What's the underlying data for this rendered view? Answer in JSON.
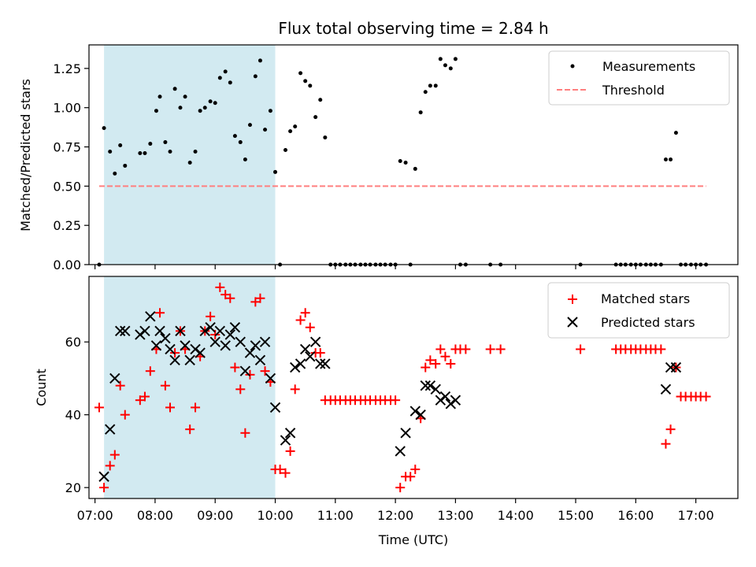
{
  "chart_data": [
    {
      "type": "scatter",
      "title": "Flux total observing time = 2.84 h",
      "xlabel": "",
      "ylabel": "Matched/Predicted stars",
      "xlim": [
        6.9,
        17.7
      ],
      "ylim": [
        0.0,
        1.4
      ],
      "yticks": [
        0.0,
        0.25,
        0.5,
        0.75,
        1.0,
        1.25
      ],
      "ytick_labels": [
        "0.00",
        "0.25",
        "0.50",
        "0.75",
        "1.00",
        "1.25"
      ],
      "grid": false,
      "legend_position": "top-right",
      "shaded_region": {
        "x_start": 7.15,
        "x_end": 10.0,
        "color": "#add8e6"
      },
      "series": [
        {
          "name": "Measurements",
          "marker": "dot",
          "color": "#000000",
          "points": [
            [
              7.07,
              0.0
            ],
            [
              7.15,
              0.87
            ],
            [
              7.25,
              0.72
            ],
            [
              7.33,
              0.58
            ],
            [
              7.42,
              0.76
            ],
            [
              7.5,
              0.63
            ],
            [
              7.75,
              0.71
            ],
            [
              7.83,
              0.71
            ],
            [
              7.92,
              0.77
            ],
            [
              8.02,
              0.98
            ],
            [
              8.08,
              1.07
            ],
            [
              8.17,
              0.78
            ],
            [
              8.25,
              0.72
            ],
            [
              8.33,
              1.12
            ],
            [
              8.42,
              1.0
            ],
            [
              8.5,
              1.07
            ],
            [
              8.58,
              0.65
            ],
            [
              8.67,
              0.72
            ],
            [
              8.75,
              0.98
            ],
            [
              8.83,
              1.0
            ],
            [
              8.92,
              1.04
            ],
            [
              9.0,
              1.03
            ],
            [
              9.08,
              1.19
            ],
            [
              9.17,
              1.23
            ],
            [
              9.25,
              1.16
            ],
            [
              9.33,
              0.82
            ],
            [
              9.42,
              0.78
            ],
            [
              9.5,
              0.67
            ],
            [
              9.58,
              0.89
            ],
            [
              9.67,
              1.2
            ],
            [
              9.75,
              1.3
            ],
            [
              9.83,
              0.86
            ],
            [
              9.92,
              0.98
            ],
            [
              10.0,
              0.59
            ],
            [
              10.08,
              0.0
            ],
            [
              10.17,
              0.73
            ],
            [
              10.25,
              0.85
            ],
            [
              10.33,
              0.88
            ],
            [
              10.42,
              1.22
            ],
            [
              10.5,
              1.17
            ],
            [
              10.58,
              1.14
            ],
            [
              10.67,
              0.94
            ],
            [
              10.75,
              1.05
            ],
            [
              10.83,
              0.81
            ],
            [
              10.92,
              0.0
            ],
            [
              11.0,
              0.0
            ],
            [
              11.08,
              0.0
            ],
            [
              11.17,
              0.0
            ],
            [
              11.25,
              0.0
            ],
            [
              11.33,
              0.0
            ],
            [
              11.42,
              0.0
            ],
            [
              11.5,
              0.0
            ],
            [
              11.58,
              0.0
            ],
            [
              11.67,
              0.0
            ],
            [
              11.75,
              0.0
            ],
            [
              11.83,
              0.0
            ],
            [
              11.92,
              0.0
            ],
            [
              12.0,
              0.0
            ],
            [
              12.08,
              0.66
            ],
            [
              12.17,
              0.65
            ],
            [
              12.25,
              0.0
            ],
            [
              12.33,
              0.61
            ],
            [
              12.42,
              0.97
            ],
            [
              12.5,
              1.1
            ],
            [
              12.58,
              1.14
            ],
            [
              12.67,
              1.14
            ],
            [
              12.75,
              1.31
            ],
            [
              12.83,
              1.27
            ],
            [
              12.92,
              1.25
            ],
            [
              13.0,
              1.31
            ],
            [
              13.08,
              0.0
            ],
            [
              13.17,
              0.0
            ],
            [
              13.58,
              0.0
            ],
            [
              13.75,
              0.0
            ],
            [
              15.08,
              0.0
            ],
            [
              15.67,
              0.0
            ],
            [
              15.75,
              0.0
            ],
            [
              15.83,
              0.0
            ],
            [
              15.92,
              0.0
            ],
            [
              16.0,
              0.0
            ],
            [
              16.08,
              0.0
            ],
            [
              16.17,
              0.0
            ],
            [
              16.25,
              0.0
            ],
            [
              16.33,
              0.0
            ],
            [
              16.42,
              0.0
            ],
            [
              16.5,
              0.67
            ],
            [
              16.58,
              0.67
            ],
            [
              16.67,
              0.84
            ],
            [
              16.75,
              0.0
            ],
            [
              16.83,
              0.0
            ],
            [
              16.92,
              0.0
            ],
            [
              17.0,
              0.0
            ],
            [
              17.08,
              0.0
            ],
            [
              17.17,
              0.0
            ]
          ]
        },
        {
          "name": "Threshold",
          "marker": "dashed-line",
          "color": "#ff7f7f",
          "points": [
            [
              7.07,
              0.5
            ],
            [
              17.17,
              0.5
            ]
          ]
        }
      ]
    },
    {
      "type": "scatter",
      "title": "",
      "xlabel": "Time (UTC)",
      "ylabel": "Count",
      "xlim": [
        6.9,
        17.7
      ],
      "ylim": [
        17,
        78
      ],
      "yticks": [
        20,
        40,
        60
      ],
      "ytick_labels": [
        "20",
        "40",
        "60"
      ],
      "xticks": [
        7,
        8,
        9,
        10,
        11,
        12,
        13,
        14,
        15,
        16,
        17
      ],
      "xtick_labels": [
        "07:00",
        "08:00",
        "09:00",
        "10:00",
        "11:00",
        "12:00",
        "13:00",
        "14:00",
        "15:00",
        "16:00",
        "17:00"
      ],
      "grid": false,
      "legend_position": "top-right",
      "shaded_region": {
        "x_start": 7.15,
        "x_end": 10.0,
        "color": "#add8e6"
      },
      "series": [
        {
          "name": "Matched stars",
          "marker": "plus",
          "color": "#ff0000",
          "points": [
            [
              7.07,
              42
            ],
            [
              7.15,
              20
            ],
            [
              7.25,
              26
            ],
            [
              7.33,
              29
            ],
            [
              7.42,
              48
            ],
            [
              7.5,
              40
            ],
            [
              7.75,
              44
            ],
            [
              7.83,
              45
            ],
            [
              7.92,
              52
            ],
            [
              8.02,
              58
            ],
            [
              8.08,
              68
            ],
            [
              8.17,
              48
            ],
            [
              8.25,
              42
            ],
            [
              8.33,
              57
            ],
            [
              8.42,
              63
            ],
            [
              8.5,
              58
            ],
            [
              8.58,
              36
            ],
            [
              8.67,
              42
            ],
            [
              8.75,
              56
            ],
            [
              8.83,
              63
            ],
            [
              8.92,
              67
            ],
            [
              9.0,
              62
            ],
            [
              9.08,
              75
            ],
            [
              9.17,
              73
            ],
            [
              9.25,
              72
            ],
            [
              9.33,
              53
            ],
            [
              9.42,
              47
            ],
            [
              9.5,
              35
            ],
            [
              9.58,
              51
            ],
            [
              9.67,
              71
            ],
            [
              9.75,
              72
            ],
            [
              9.83,
              52
            ],
            [
              9.92,
              49
            ],
            [
              10.0,
              25
            ],
            [
              10.08,
              25
            ],
            [
              10.17,
              24
            ],
            [
              10.25,
              30
            ],
            [
              10.33,
              47
            ],
            [
              10.42,
              66
            ],
            [
              10.5,
              68
            ],
            [
              10.58,
              64
            ],
            [
              10.67,
              57
            ],
            [
              10.75,
              57
            ],
            [
              10.83,
              44
            ],
            [
              10.92,
              44
            ],
            [
              11.0,
              44
            ],
            [
              11.08,
              44
            ],
            [
              11.17,
              44
            ],
            [
              11.25,
              44
            ],
            [
              11.33,
              44
            ],
            [
              11.42,
              44
            ],
            [
              11.5,
              44
            ],
            [
              11.58,
              44
            ],
            [
              11.67,
              44
            ],
            [
              11.75,
              44
            ],
            [
              11.83,
              44
            ],
            [
              11.92,
              44
            ],
            [
              12.0,
              44
            ],
            [
              12.08,
              20
            ],
            [
              12.17,
              23
            ],
            [
              12.25,
              23
            ],
            [
              12.33,
              25
            ],
            [
              12.42,
              39
            ],
            [
              12.5,
              53
            ],
            [
              12.58,
              55
            ],
            [
              12.67,
              54
            ],
            [
              12.75,
              58
            ],
            [
              12.83,
              56
            ],
            [
              12.92,
              54
            ],
            [
              13.0,
              58
            ],
            [
              13.08,
              58
            ],
            [
              13.17,
              58
            ],
            [
              13.58,
              58
            ],
            [
              13.75,
              58
            ],
            [
              15.08,
              58
            ],
            [
              15.67,
              58
            ],
            [
              15.75,
              58
            ],
            [
              15.83,
              58
            ],
            [
              15.92,
              58
            ],
            [
              16.0,
              58
            ],
            [
              16.08,
              58
            ],
            [
              16.17,
              58
            ],
            [
              16.25,
              58
            ],
            [
              16.33,
              58
            ],
            [
              16.42,
              58
            ],
            [
              16.5,
              32
            ],
            [
              16.58,
              36
            ],
            [
              16.67,
              53
            ],
            [
              16.75,
              45
            ],
            [
              16.83,
              45
            ],
            [
              16.92,
              45
            ],
            [
              17.0,
              45
            ],
            [
              17.08,
              45
            ],
            [
              17.17,
              45
            ]
          ]
        },
        {
          "name": "Predicted stars",
          "marker": "x",
          "color": "#000000",
          "points": [
            [
              7.15,
              23
            ],
            [
              7.25,
              36
            ],
            [
              7.33,
              50
            ],
            [
              7.42,
              63
            ],
            [
              7.5,
              63
            ],
            [
              7.75,
              62
            ],
            [
              7.83,
              63
            ],
            [
              7.92,
              67
            ],
            [
              8.02,
              59
            ],
            [
              8.08,
              63
            ],
            [
              8.17,
              61
            ],
            [
              8.25,
              58
            ],
            [
              8.33,
              55
            ],
            [
              8.42,
              63
            ],
            [
              8.5,
              59
            ],
            [
              8.58,
              55
            ],
            [
              8.67,
              58
            ],
            [
              8.75,
              57
            ],
            [
              8.83,
              63
            ],
            [
              8.92,
              64
            ],
            [
              9.0,
              60
            ],
            [
              9.08,
              63
            ],
            [
              9.17,
              59
            ],
            [
              9.25,
              62
            ],
            [
              9.33,
              64
            ],
            [
              9.42,
              60
            ],
            [
              9.5,
              52
            ],
            [
              9.58,
              57
            ],
            [
              9.67,
              59
            ],
            [
              9.75,
              55
            ],
            [
              9.83,
              60
            ],
            [
              9.92,
              50
            ],
            [
              10.0,
              42
            ],
            [
              10.17,
              33
            ],
            [
              10.25,
              35
            ],
            [
              10.33,
              53
            ],
            [
              10.42,
              54
            ],
            [
              10.5,
              58
            ],
            [
              10.58,
              56
            ],
            [
              10.67,
              60
            ],
            [
              10.75,
              54
            ],
            [
              10.83,
              54
            ],
            [
              12.08,
              30
            ],
            [
              12.17,
              35
            ],
            [
              12.33,
              41
            ],
            [
              12.42,
              40
            ],
            [
              12.5,
              48
            ],
            [
              12.58,
              48
            ],
            [
              12.67,
              47
            ],
            [
              12.75,
              44
            ],
            [
              12.83,
              45
            ],
            [
              12.92,
              43
            ],
            [
              13.0,
              44
            ],
            [
              16.5,
              47
            ],
            [
              16.58,
              53
            ],
            [
              16.67,
              53
            ]
          ]
        }
      ]
    }
  ]
}
